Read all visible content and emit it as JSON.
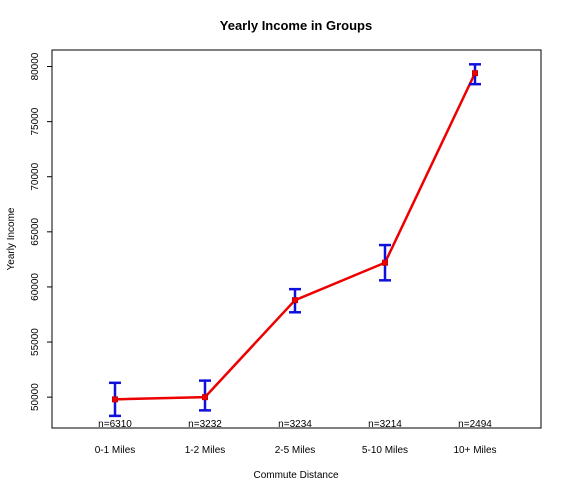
{
  "chart_data": {
    "type": "line",
    "title": "Yearly Income in Groups",
    "xlabel": "Commute Distance",
    "ylabel": "Yearly Income",
    "categories": [
      "0-1 Miles",
      "1-2 Miles",
      "2-5 Miles",
      "5-10 Miles",
      "10+ Miles"
    ],
    "n_labels": [
      "n=6310",
      "n=3232",
      "n=3234",
      "n=3214",
      "n=2494"
    ],
    "series": [
      {
        "values": [
          49800,
          50000,
          58800,
          62200,
          79400
        ],
        "lower": [
          48300,
          48800,
          57700,
          60600,
          78400
        ],
        "upper": [
          51300,
          51500,
          59800,
          63800,
          80200
        ]
      }
    ],
    "y_ticks": [
      50000,
      55000,
      60000,
      65000,
      70000,
      75000,
      80000
    ],
    "y_tick_labels": [
      "50000",
      "55000",
      "60000",
      "65000",
      "70000",
      "75000",
      "80000"
    ],
    "ylim": [
      47200,
      81500
    ],
    "grid": false,
    "colors": {
      "line": "#ee0000",
      "error_bars": "#1010dd",
      "frame": "#000000"
    }
  }
}
